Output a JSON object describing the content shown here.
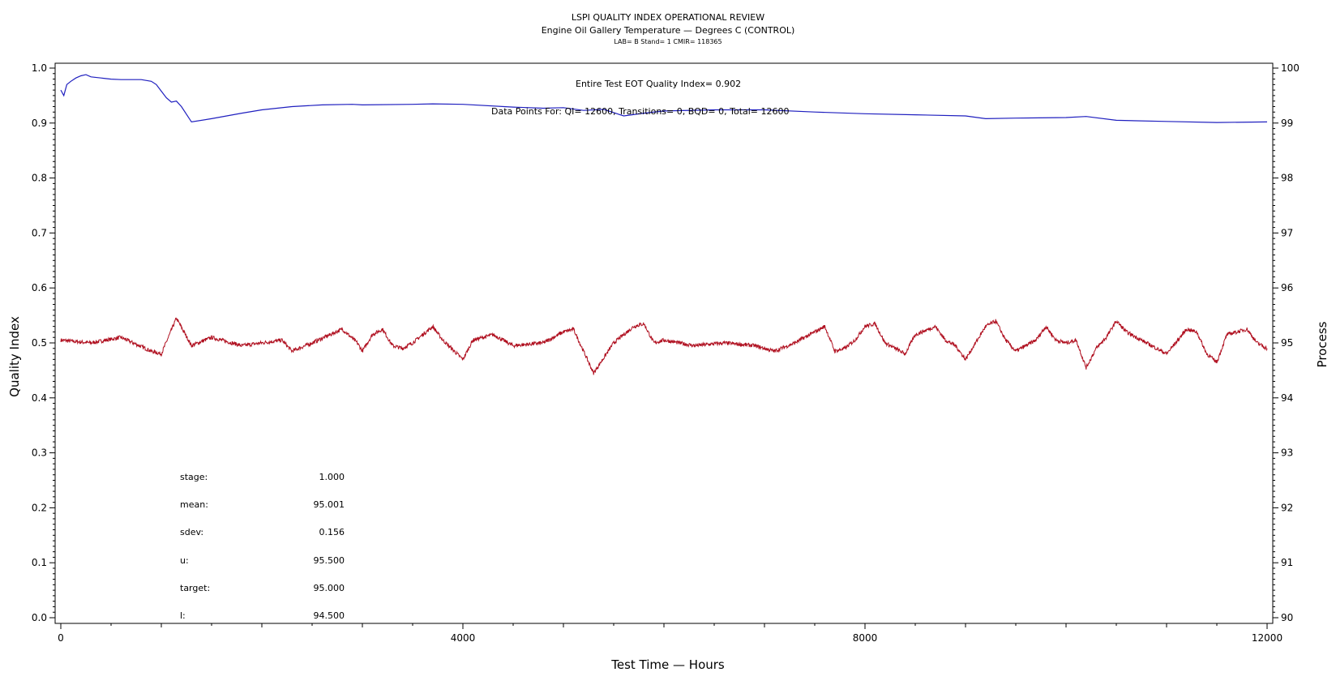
{
  "chart_data": {
    "type": "line",
    "title": "LSPI QUALITY INDEX OPERATIONAL REVIEW",
    "subtitle": "Engine Oil Gallery Temperature — Degrees C (CONTROL)",
    "subtitle2": "LAB= B Stand= 1 CMIR= 118365",
    "xlabel": "Test Time — Hours",
    "ylabel": "Quality Index",
    "y2label": "Process",
    "xlim": [
      0,
      12000
    ],
    "ylim": [
      0.0,
      1.0
    ],
    "y2lim": [
      90,
      100
    ],
    "xticks": [
      "0",
      "4000",
      "8000",
      "12000"
    ],
    "yticks": [
      "0.0",
      "0.1",
      "0.2",
      "0.3",
      "0.4",
      "0.5",
      "0.6",
      "0.7",
      "0.8",
      "0.9",
      "1.0"
    ],
    "y2ticks": [
      "90",
      "91",
      "92",
      "93",
      "94",
      "95",
      "96",
      "97",
      "98",
      "99",
      "100"
    ],
    "grid": false,
    "annotations": {
      "quality_index": "Entire Test EOT Quality Index=   0.902",
      "data_points": "Data Points For: QI=  12600, Transitions=      0, BQD=      0, Total=  12600"
    },
    "stats": [
      {
        "label": "stage:",
        "value": "1.000"
      },
      {
        "label": "mean:",
        "value": "95.001"
      },
      {
        "label": "sdev:",
        "value": "0.156"
      },
      {
        "label": "u:",
        "value": "95.500"
      },
      {
        "label": "target:",
        "value": "95.000"
      },
      {
        "label": "l:",
        "value": "94.500"
      }
    ],
    "series": [
      {
        "axis": "left",
        "color": "#1f1fbf",
        "x": [
          0,
          30,
          60,
          100,
          150,
          200,
          250,
          300,
          400,
          500,
          600,
          700,
          800,
          900,
          950,
          1000,
          1050,
          1100,
          1150,
          1200,
          1300,
          1500,
          1800,
          2000,
          2300,
          2600,
          2900,
          3000,
          3500,
          3700,
          4000,
          4500,
          4800,
          5000,
          5200,
          5400,
          5600,
          5800,
          6000,
          6500,
          7000,
          7500,
          8000,
          8500,
          9000,
          9200,
          9500,
          10000,
          10200,
          10500,
          11000,
          11500,
          12000
        ],
        "y": [
          0.96,
          0.95,
          0.97,
          0.976,
          0.982,
          0.986,
          0.988,
          0.984,
          0.982,
          0.98,
          0.979,
          0.979,
          0.979,
          0.976,
          0.97,
          0.958,
          0.946,
          0.938,
          0.94,
          0.93,
          0.902,
          0.908,
          0.918,
          0.924,
          0.93,
          0.933,
          0.934,
          0.933,
          0.934,
          0.935,
          0.934,
          0.929,
          0.927,
          0.928,
          0.923,
          0.925,
          0.913,
          0.918,
          0.922,
          0.924,
          0.924,
          0.92,
          0.917,
          0.915,
          0.913,
          0.908,
          0.909,
          0.91,
          0.912,
          0.905,
          0.903,
          0.901,
          0.902
        ]
      },
      {
        "axis": "right",
        "color": "#b01020",
        "x": [
          0,
          300,
          600,
          900,
          1000,
          1150,
          1300,
          1500,
          1800,
          2000,
          2200,
          2300,
          2500,
          2800,
          2950,
          3000,
          3100,
          3200,
          3300,
          3400,
          3500,
          3700,
          3800,
          4000,
          4100,
          4300,
          4500,
          4800,
          5000,
          5100,
          5200,
          5300,
          5500,
          5700,
          5800,
          5900,
          6000,
          6300,
          6600,
          6900,
          7100,
          7300,
          7400,
          7600,
          7700,
          7800,
          7900,
          8000,
          8100,
          8200,
          8400,
          8500,
          8700,
          8800,
          8900,
          9000,
          9100,
          9200,
          9300,
          9400,
          9500,
          9700,
          9800,
          9900,
          10000,
          10100,
          10200,
          10300,
          10400,
          10500,
          10600,
          10800,
          11000,
          11200,
          11300,
          11400,
          11500,
          11600,
          11800,
          11900,
          12000
        ],
        "y": [
          95.05,
          95.0,
          95.1,
          94.85,
          94.8,
          95.45,
          94.95,
          95.1,
          94.95,
          95.0,
          95.05,
          94.85,
          95.0,
          95.25,
          95.0,
          94.85,
          95.15,
          95.25,
          94.95,
          94.9,
          95.0,
          95.3,
          95.05,
          94.7,
          95.05,
          95.15,
          94.95,
          95.0,
          95.2,
          95.25,
          94.85,
          94.45,
          95.0,
          95.3,
          95.35,
          95.0,
          95.05,
          94.95,
          95.0,
          94.95,
          94.85,
          95.0,
          95.1,
          95.3,
          94.85,
          94.9,
          95.05,
          95.3,
          95.35,
          95.0,
          94.8,
          95.15,
          95.3,
          95.05,
          94.95,
          94.7,
          95.0,
          95.3,
          95.4,
          95.05,
          94.85,
          95.05,
          95.3,
          95.05,
          95.0,
          95.05,
          94.55,
          94.9,
          95.1,
          95.4,
          95.2,
          95.0,
          94.8,
          95.25,
          95.2,
          94.8,
          94.65,
          95.15,
          95.25,
          95.0,
          94.9
        ]
      }
    ]
  }
}
